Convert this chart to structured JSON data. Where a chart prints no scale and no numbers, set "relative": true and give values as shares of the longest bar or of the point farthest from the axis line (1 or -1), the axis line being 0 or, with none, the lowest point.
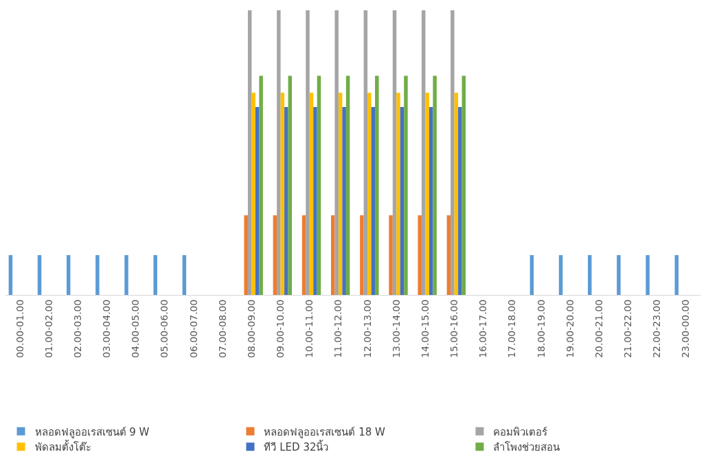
{
  "chart_data": {
    "type": "bar",
    "relative": true,
    "legend": "bottom",
    "categories": [
      "00.00-01.00",
      "01.00-02.00",
      "02.00-03.00",
      "03.00-04.00",
      "04.00-05.00",
      "05.00-06.00",
      "06.00-07.00",
      "07.00-08.00",
      "08.00-09.00",
      "09.00-10.00",
      "10.00-11.00",
      "11.00-12.00",
      "12.00-13.00",
      "13.00-14.00",
      "14.00-15.00",
      "15.00-16.00",
      "16.00-17.00",
      "17.00-18.00",
      "18.00-19.00",
      "19.00-20.00",
      "20.00-21.00",
      "21.00-22.00",
      "22.00-23.00",
      "23.00-00.00"
    ],
    "series": [
      {
        "name": "หลอดฟลูออเรสเซนต์ 9 W",
        "color": "#5b9bd5",
        "values": [
          0.14,
          0.14,
          0.14,
          0.14,
          0.14,
          0.14,
          0.14,
          null,
          null,
          null,
          null,
          null,
          null,
          null,
          null,
          null,
          null,
          null,
          0.14,
          0.14,
          0.14,
          0.14,
          0.14,
          0.14
        ]
      },
      {
        "name": "หลอดฟลูออเรสเซนต์ 18 W",
        "color": "#ed7d31",
        "values": [
          null,
          null,
          null,
          null,
          null,
          null,
          null,
          null,
          0.28,
          0.28,
          0.28,
          0.28,
          0.28,
          0.28,
          0.28,
          0.28,
          null,
          null,
          null,
          null,
          null,
          null,
          null,
          null
        ]
      },
      {
        "name": "คอมพิวเตอร์",
        "color": "#a5a5a5",
        "values": [
          null,
          null,
          null,
          null,
          null,
          null,
          null,
          null,
          1,
          1,
          1,
          1,
          1,
          1,
          1,
          1,
          null,
          null,
          null,
          null,
          null,
          null,
          null,
          null
        ]
      },
      {
        "name": "พัดลมตั้งโต๊ะ",
        "color": "#ffc000",
        "values": [
          null,
          null,
          null,
          null,
          null,
          null,
          null,
          null,
          0.71,
          0.71,
          0.71,
          0.71,
          0.71,
          0.71,
          0.71,
          0.71,
          null,
          null,
          null,
          null,
          null,
          null,
          null,
          null
        ]
      },
      {
        "name": "ทีวี LED 32นิ้ว",
        "color": "#4472c4",
        "values": [
          null,
          null,
          null,
          null,
          null,
          null,
          null,
          null,
          0.66,
          0.66,
          0.66,
          0.66,
          0.66,
          0.66,
          0.66,
          0.66,
          null,
          null,
          null,
          null,
          null,
          null,
          null,
          null
        ]
      },
      {
        "name": "ลำโพงช่วยสอน",
        "color": "#70ad47",
        "values": [
          null,
          null,
          null,
          null,
          null,
          null,
          null,
          null,
          0.77,
          0.77,
          0.77,
          0.77,
          0.77,
          0.77,
          0.77,
          0.77,
          null,
          null,
          null,
          null,
          null,
          null,
          null,
          null
        ]
      }
    ]
  }
}
